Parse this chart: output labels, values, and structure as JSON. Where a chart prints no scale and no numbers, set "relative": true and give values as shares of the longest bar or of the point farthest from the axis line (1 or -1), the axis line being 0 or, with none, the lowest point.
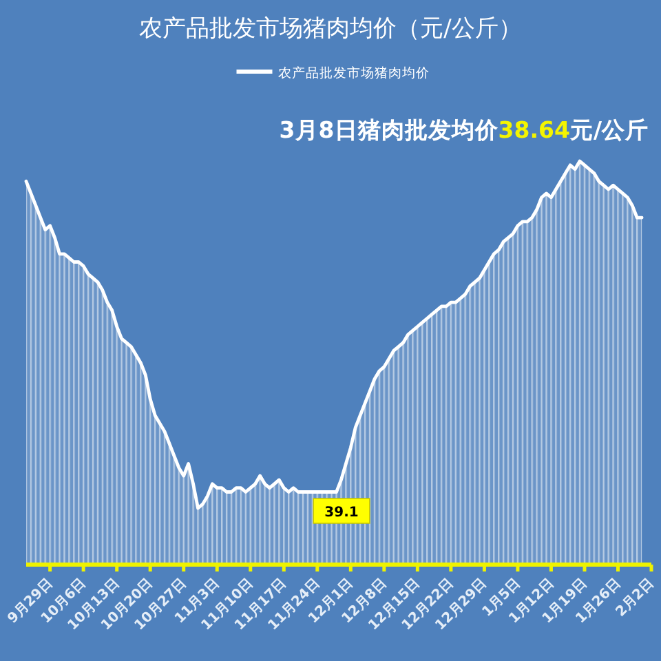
{
  "chart_data": {
    "type": "area",
    "title": "农产品批发市场猪肉均价（元/公斤）",
    "relative": true,
    "legend": "top",
    "annotations": [
      "3月8日猪肉批发均价38.64元/公斤",
      "39.1"
    ],
    "categories": [
      null,
      null,
      null,
      null,
      null,
      "9月29日",
      null,
      null,
      null,
      null,
      null,
      null,
      "10月6日",
      null,
      null,
      null,
      null,
      null,
      null,
      "10月13日",
      null,
      null,
      null,
      null,
      null,
      null,
      "10月20日",
      null,
      null,
      null,
      null,
      null,
      null,
      "10月27日",
      null,
      null,
      null,
      null,
      null,
      null,
      "11月3日",
      null,
      null,
      null,
      null,
      null,
      null,
      "11月10日",
      null,
      null,
      null,
      null,
      null,
      null,
      "11月17日",
      null,
      null,
      null,
      null,
      null,
      null,
      "11月24日",
      null,
      null,
      null,
      null,
      null,
      null,
      "12月1日",
      null,
      null,
      null,
      null,
      null,
      null,
      "12月8日",
      null,
      null,
      null,
      null,
      null,
      null,
      "12月15日",
      null,
      null,
      null,
      null,
      null,
      null,
      "12月22日",
      null,
      null,
      null,
      null,
      null,
      null,
      "12月29日",
      null,
      null,
      null,
      null,
      null,
      null,
      "1月5日",
      null,
      null,
      null,
      null,
      null,
      null,
      "1月12日",
      null,
      null,
      null,
      null,
      null,
      null,
      "1月19日",
      null,
      null,
      null,
      null,
      null,
      null,
      "1月26日",
      null,
      null,
      null,
      null,
      null,
      null,
      "2月2日"
    ],
    "series": [
      {
        "name": "农产品批发市场猪肉均价",
        "color": "#ffffff",
        "values": [
          0.95,
          0.92,
          0.89,
          0.86,
          0.83,
          0.84,
          0.81,
          0.77,
          0.77,
          0.76,
          0.75,
          0.75,
          0.74,
          0.72,
          0.71,
          0.7,
          0.68,
          0.65,
          0.63,
          0.59,
          0.56,
          0.55,
          0.54,
          0.52,
          0.5,
          0.47,
          0.41,
          0.37,
          0.35,
          0.33,
          0.3,
          0.27,
          0.24,
          0.22,
          0.25,
          0.2,
          0.14,
          0.15,
          0.17,
          0.2,
          0.19,
          0.19,
          0.18,
          0.18,
          0.19,
          0.19,
          0.18,
          0.19,
          0.2,
          0.22,
          0.2,
          0.19,
          0.2,
          0.21,
          0.19,
          0.18,
          0.19,
          0.18,
          0.18,
          0.18,
          0.18,
          0.18,
          0.18,
          0.18,
          0.18,
          0.18,
          0.21,
          0.25,
          0.29,
          0.34,
          0.37,
          0.4,
          0.43,
          0.46,
          0.48,
          0.49,
          0.51,
          0.53,
          0.54,
          0.55,
          0.57,
          0.58,
          0.59,
          0.6,
          0.61,
          0.62,
          0.63,
          0.64,
          0.64,
          0.65,
          0.65,
          0.66,
          0.67,
          0.69,
          0.7,
          0.71,
          0.73,
          0.75,
          0.77,
          0.78,
          0.8,
          0.81,
          0.82,
          0.84,
          0.85,
          0.85,
          0.86,
          0.88,
          0.91,
          0.92,
          0.91,
          0.93,
          0.95,
          0.97,
          0.99,
          0.98,
          1,
          0.99,
          0.98,
          0.97,
          0.95,
          0.94,
          0.93,
          0.94,
          0.93,
          0.92,
          0.91,
          0.89,
          0.86,
          0.86,
          null,
          null
        ]
      }
    ]
  }
}
